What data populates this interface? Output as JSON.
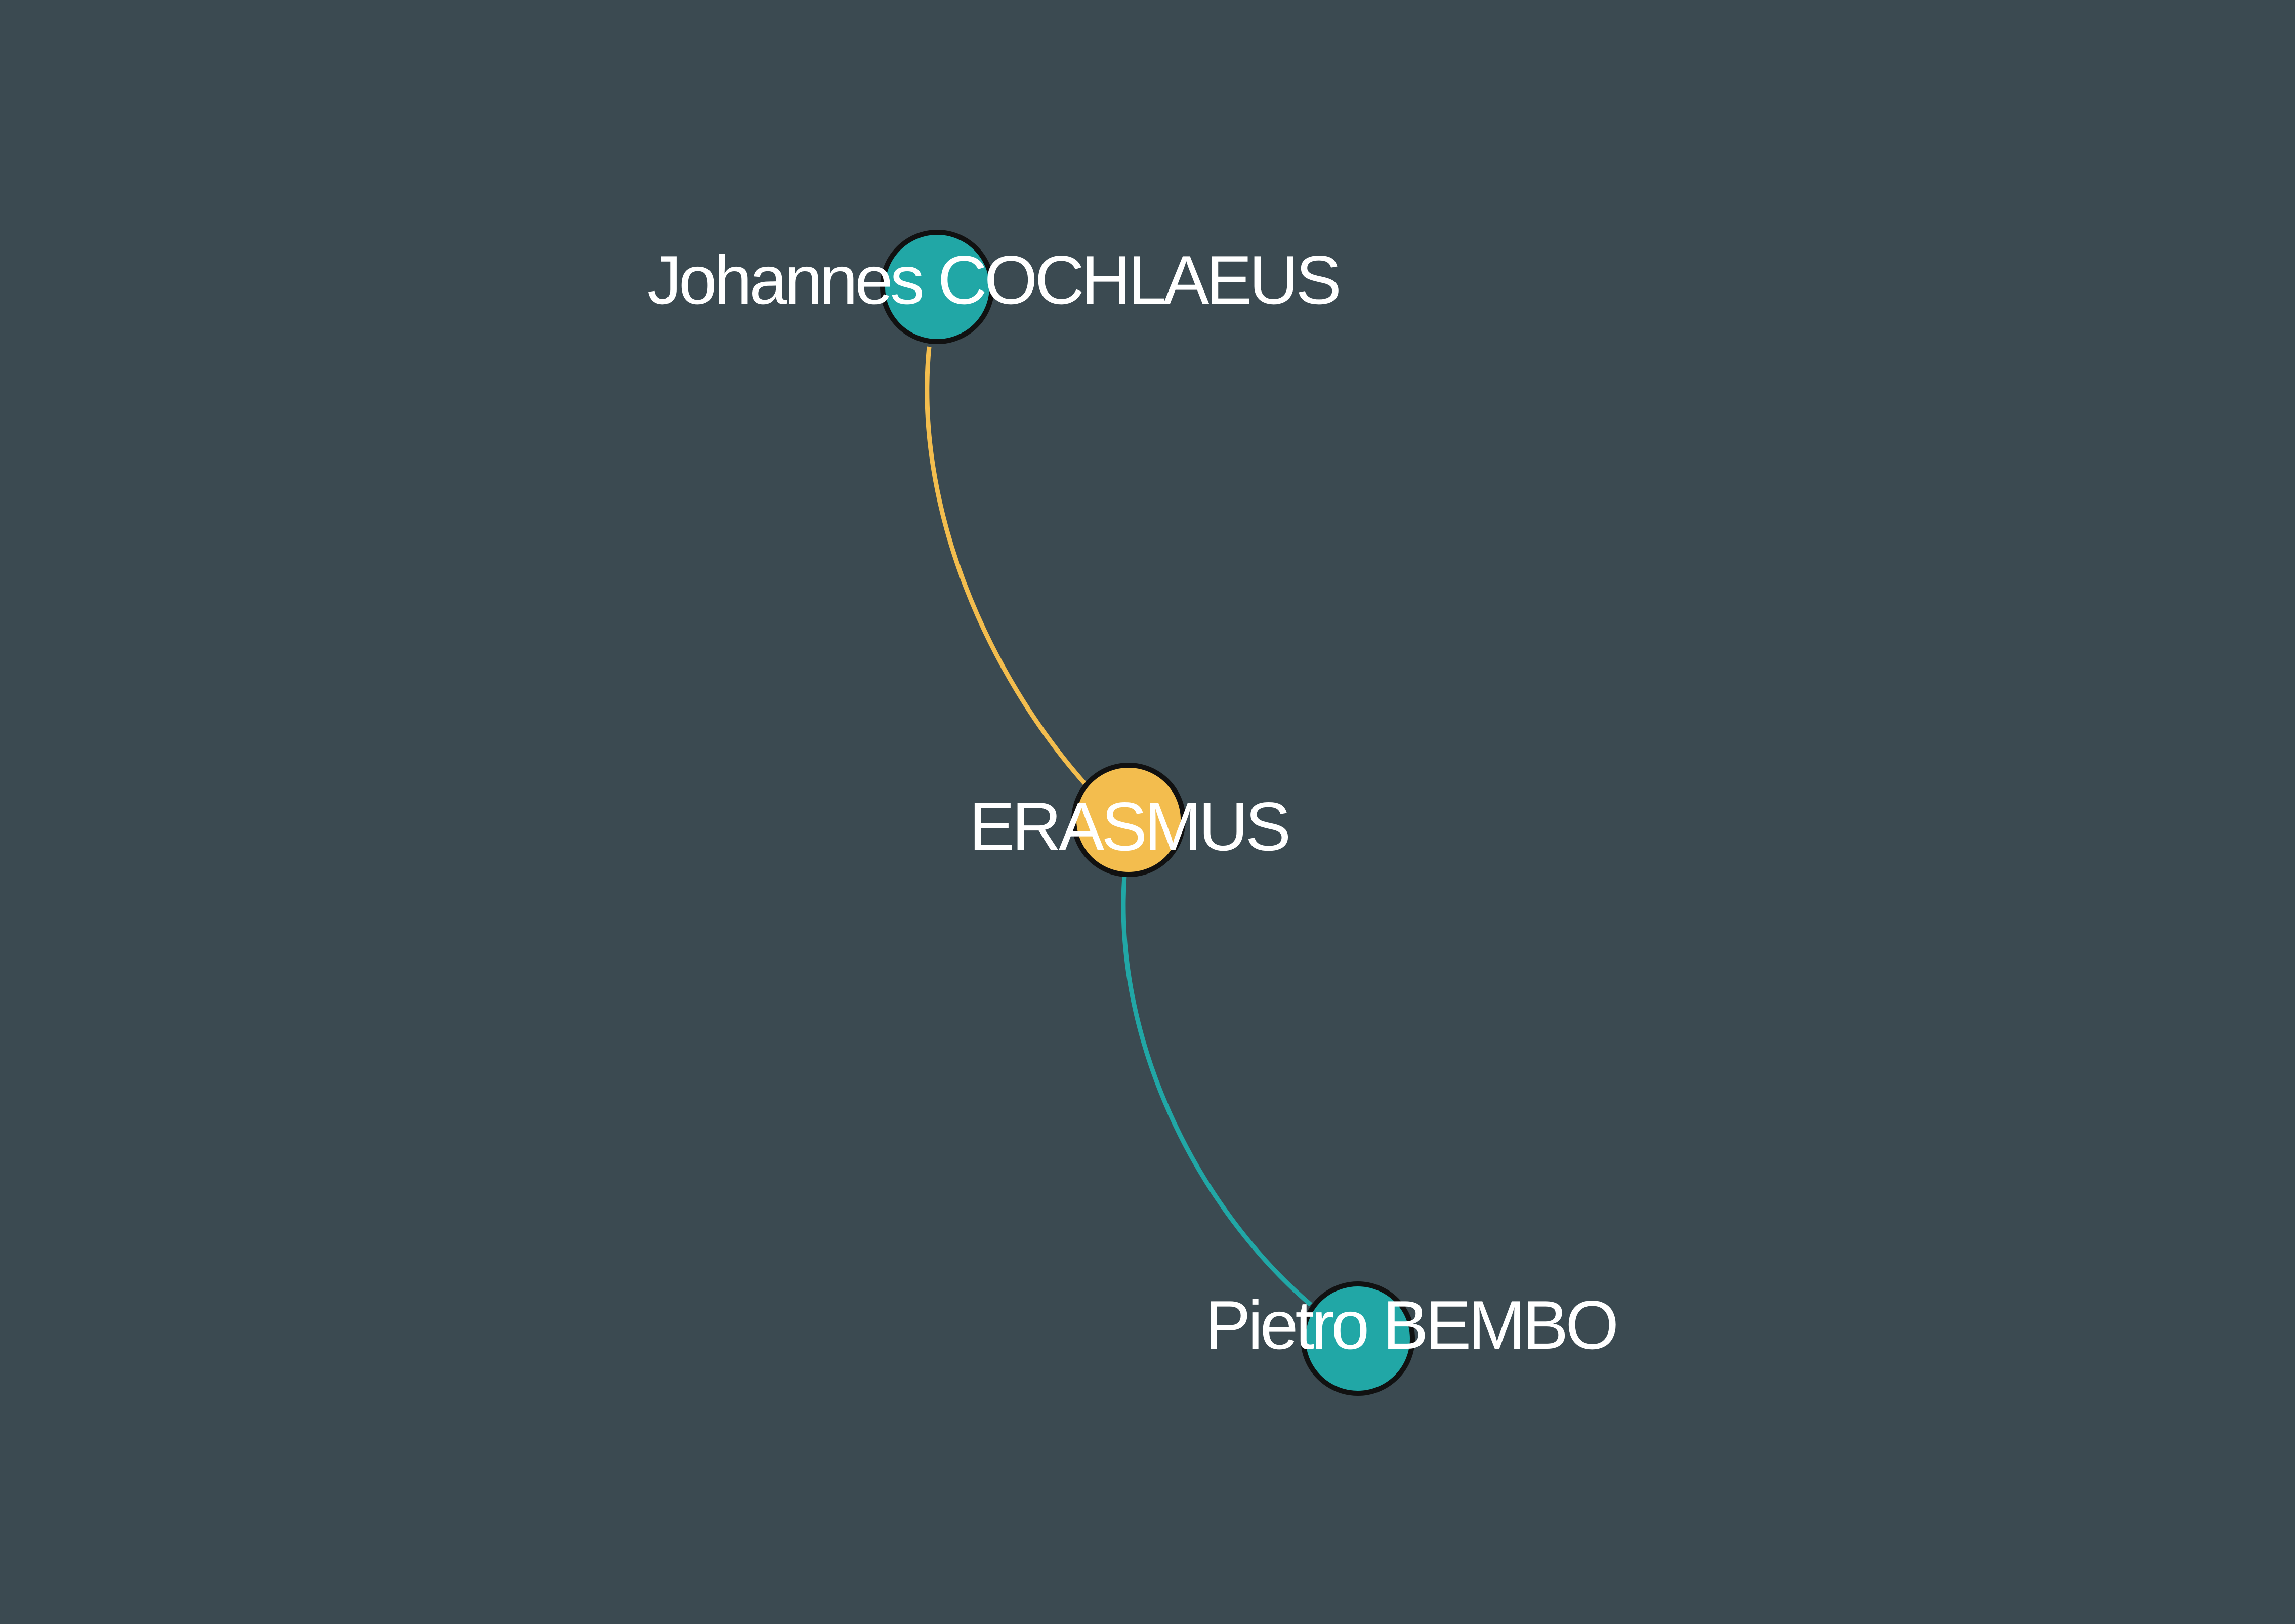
{
  "graph": {
    "background_color": "#3b4a51",
    "node_colors": {
      "teal": "#21a7a6",
      "gold": "#f3bd4e",
      "outline": "#111111"
    },
    "nodes": [
      {
        "id": "cochlaeus",
        "label": "Johannes COCHLAEUS",
        "color": "#21a7a6"
      },
      {
        "id": "erasmus",
        "label": "ERASMUS",
        "color": "#f3bd4e"
      },
      {
        "id": "bembo",
        "label": "Pietro BEMBO",
        "color": "#21a7a6"
      }
    ],
    "edges": [
      {
        "from": "cochlaeus",
        "to": "erasmus",
        "color": "#f3bd4e"
      },
      {
        "from": "erasmus",
        "to": "bembo",
        "color": "#21a7a6"
      }
    ]
  }
}
